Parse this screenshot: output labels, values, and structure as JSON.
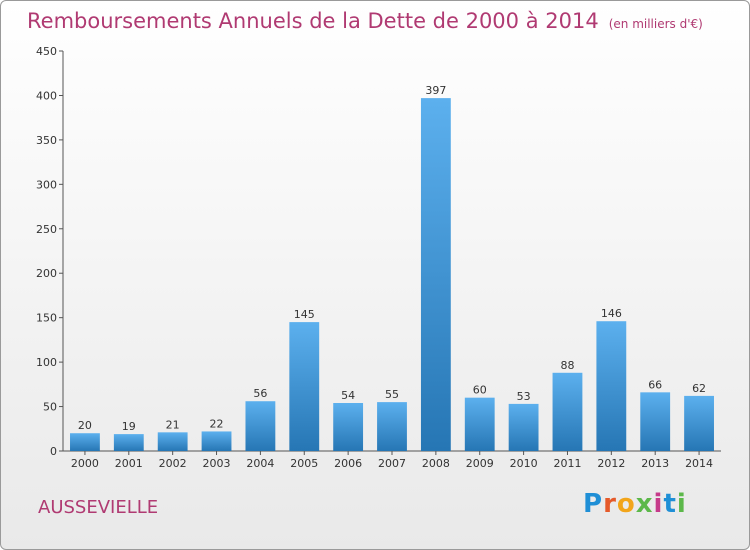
{
  "header": {
    "title": "Remboursements Annuels de la Dette de 2000 à 2014",
    "unit": "(en milliers d'€)"
  },
  "footer": {
    "commune": "AUSSEVIELLE",
    "logo_text": "Proxiti"
  },
  "colors": {
    "title": "#b03a72",
    "bar_top": "#5cb0ee",
    "bar_bottom": "#2676b4",
    "logo": [
      "#1f8fd6",
      "#e55a2a",
      "#f2a51a",
      "#5cb84a",
      "#c63b8a",
      "#1f8fd6",
      "#5cb84a"
    ]
  },
  "chart_data": {
    "type": "bar",
    "title": "Remboursements Annuels de la Dette de 2000 à 2014",
    "xlabel": "",
    "ylabel": "",
    "categories": [
      "2000",
      "2001",
      "2002",
      "2003",
      "2004",
      "2005",
      "2006",
      "2007",
      "2008",
      "2009",
      "2010",
      "2011",
      "2012",
      "2013",
      "2014"
    ],
    "values": [
      20,
      19,
      21,
      22,
      56,
      145,
      54,
      55,
      397,
      60,
      53,
      88,
      146,
      66,
      62
    ],
    "ylim": [
      0,
      450
    ],
    "yticks": [
      0,
      50,
      100,
      150,
      200,
      250,
      300,
      350,
      400,
      450
    ],
    "grid": false,
    "data_labels": true
  }
}
